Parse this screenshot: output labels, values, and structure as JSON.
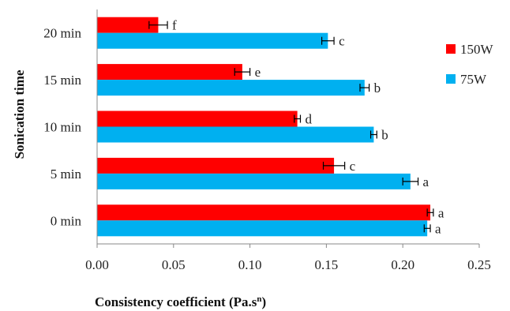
{
  "chart_data": {
    "type": "bar",
    "orientation": "horizontal",
    "categories": [
      "0 min",
      "5 min",
      "10 min",
      "15 min",
      "20 min"
    ],
    "series": [
      {
        "name": "150W",
        "color": "#ff0000",
        "values": [
          0.218,
          0.155,
          0.131,
          0.095,
          0.04
        ],
        "errors": [
          0.002,
          0.007,
          0.002,
          0.005,
          0.006
        ],
        "letters": [
          "a",
          "c",
          "d",
          "e",
          "f"
        ]
      },
      {
        "name": "75W",
        "color": "#00b0f0",
        "values": [
          0.216,
          0.205,
          0.181,
          0.175,
          0.151
        ],
        "errors": [
          0.002,
          0.005,
          0.002,
          0.003,
          0.004
        ],
        "letters": [
          "a",
          "a",
          "b",
          "b",
          "c"
        ]
      }
    ],
    "x_ticks": [
      "0.00",
      "0.05",
      "0.10",
      "0.15",
      "0.20",
      "0.25"
    ],
    "xlim": [
      0,
      0.25
    ],
    "xlabel": "Consistency coefficient  (Pa.s",
    "xlabel_sup": "n",
    "xlabel_end": ")",
    "ylabel": "Sonication time",
    "grid": false,
    "legend_position": "right"
  }
}
